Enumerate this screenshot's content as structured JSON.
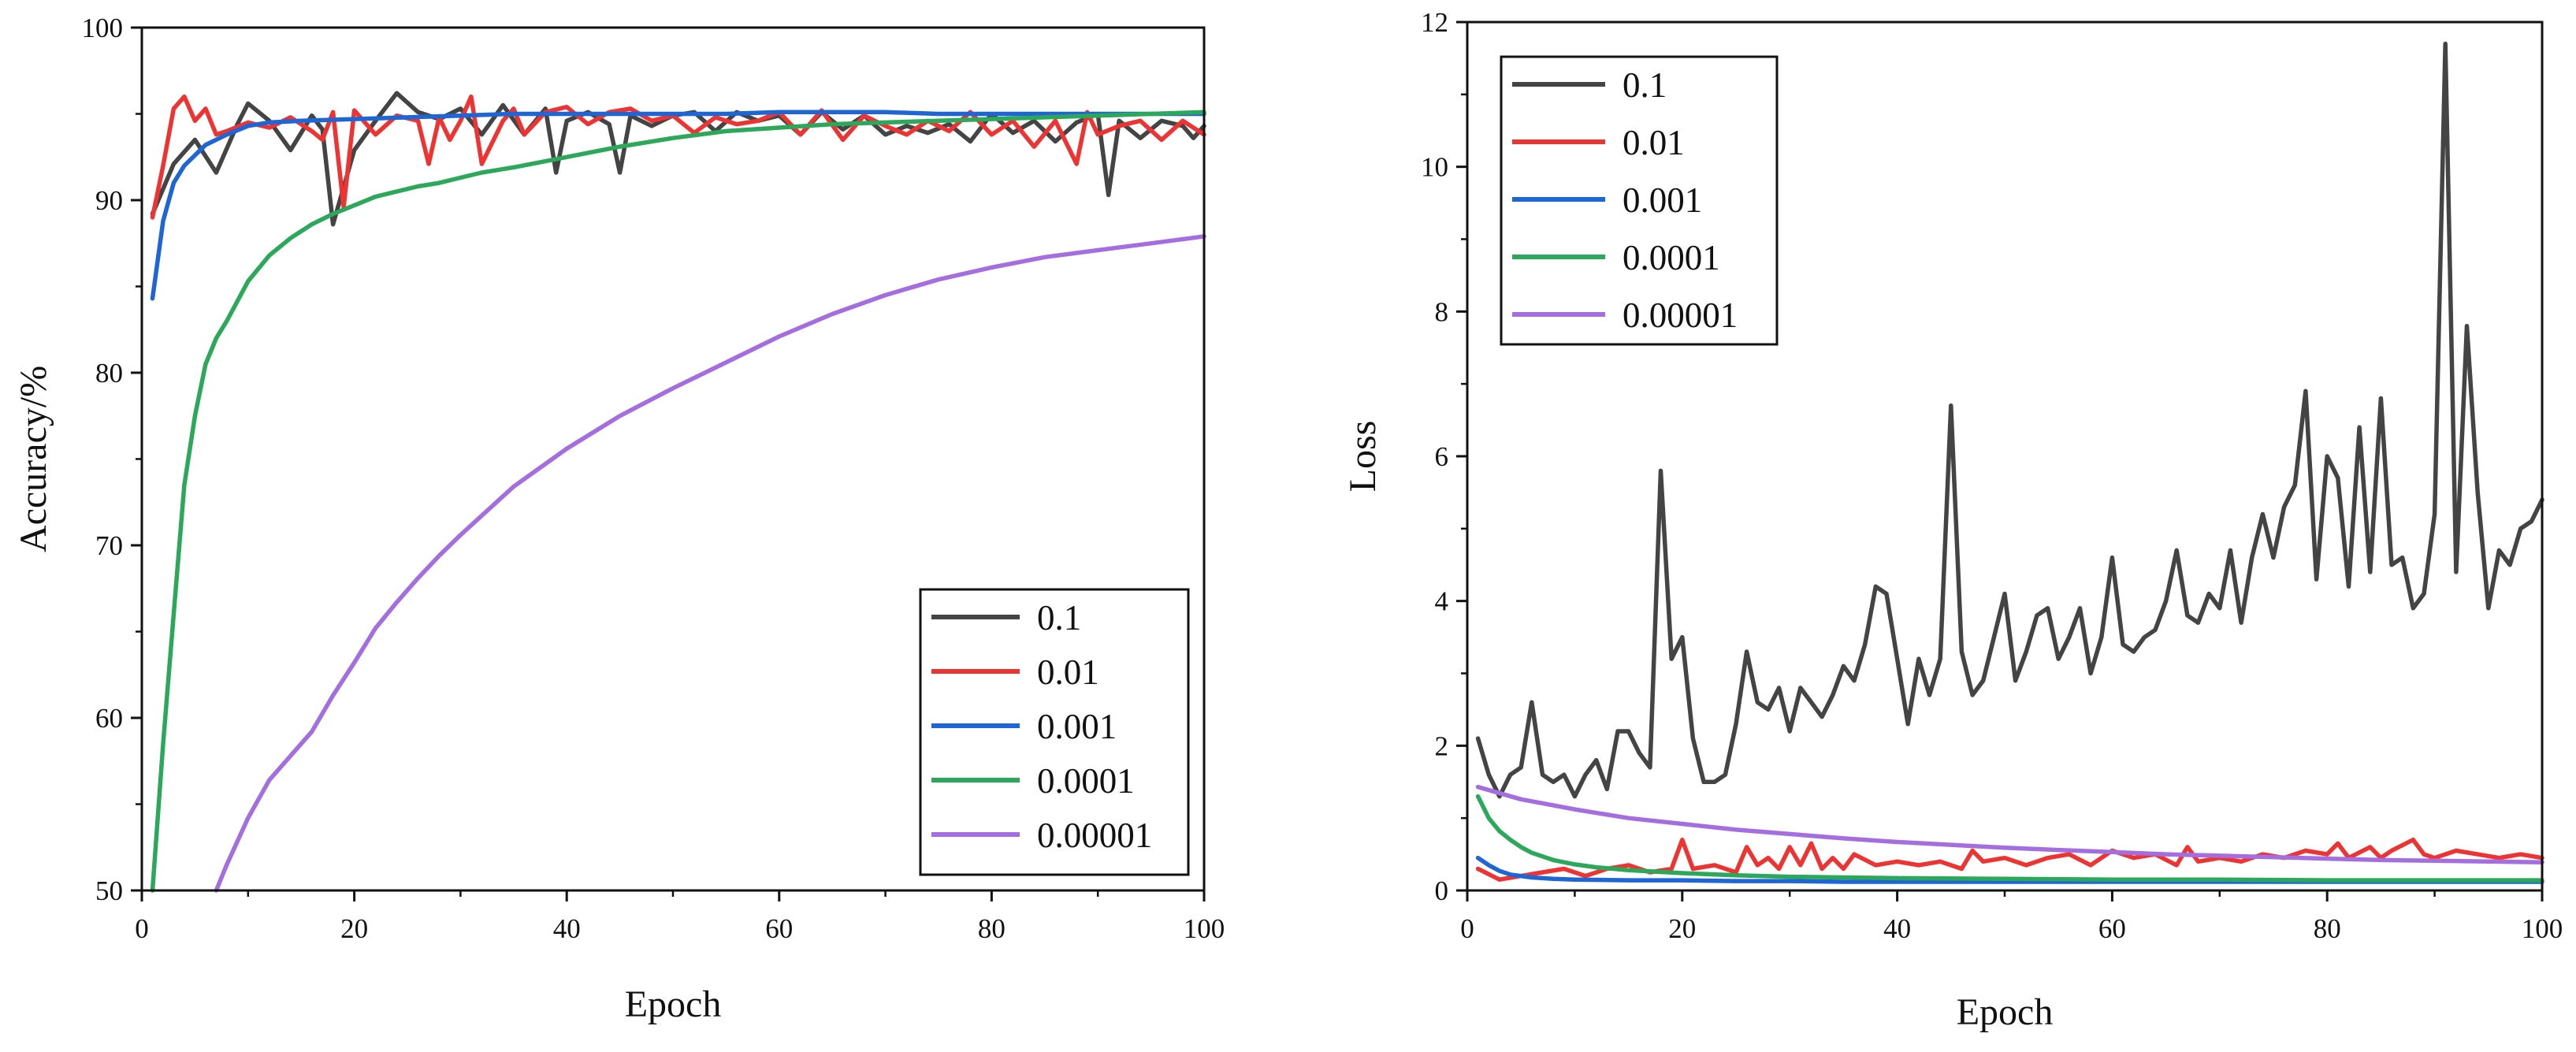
{
  "chart_data": [
    {
      "type": "line",
      "xlabel": "Epoch",
      "ylabel": "Accuracy/%",
      "xlim": [
        0,
        100
      ],
      "ylim": [
        50,
        100
      ],
      "xticks": [
        "0",
        "20",
        "40",
        "60",
        "80",
        "100"
      ],
      "yticks": [
        "50",
        "60",
        "70",
        "80",
        "90",
        "100"
      ],
      "legend_position": "bottom-right",
      "series": [
        {
          "name": "0.1",
          "color": "#444444",
          "x": [
            1,
            3,
            5,
            7,
            9,
            10,
            12,
            14,
            16,
            17,
            18,
            20,
            22,
            24,
            26,
            28,
            30,
            32,
            34,
            36,
            38,
            39,
            40,
            42,
            44,
            45,
            46,
            48,
            50,
            52,
            54,
            56,
            58,
            60,
            62,
            64,
            66,
            68,
            70,
            72,
            74,
            76,
            78,
            80,
            82,
            84,
            86,
            88,
            90,
            91,
            92,
            94,
            96,
            98,
            99,
            100
          ],
          "y": [
            89.2,
            92.1,
            93.5,
            91.6,
            94.4,
            95.6,
            94.6,
            92.9,
            94.9,
            94.1,
            88.6,
            92.9,
            94.6,
            96.2,
            95.1,
            94.7,
            95.3,
            93.8,
            95.5,
            93.8,
            95.3,
            91.6,
            94.6,
            95.1,
            94.4,
            91.6,
            94.9,
            94.3,
            94.9,
            95.1,
            94.0,
            95.1,
            94.6,
            94.9,
            93.8,
            95.1,
            94.1,
            94.9,
            93.8,
            94.3,
            93.9,
            94.4,
            93.4,
            95.0,
            93.9,
            94.6,
            93.4,
            94.5,
            95.0,
            90.3,
            94.6,
            93.6,
            94.6,
            94.3,
            93.6,
            94.3
          ]
        },
        {
          "name": "0.01",
          "color": "#ee3333",
          "x": [
            1,
            2,
            3,
            4,
            5,
            6,
            7,
            8,
            10,
            12,
            14,
            16,
            17,
            18,
            19,
            20,
            22,
            24,
            26,
            27,
            28,
            29,
            30,
            31,
            32,
            34,
            35,
            36,
            38,
            40,
            42,
            44,
            46,
            48,
            50,
            52,
            54,
            56,
            58,
            60,
            62,
            64,
            66,
            68,
            70,
            72,
            74,
            76,
            78,
            80,
            82,
            84,
            86,
            88,
            89,
            90,
            92,
            94,
            96,
            98,
            100
          ],
          "y": [
            89.0,
            92.0,
            95.3,
            96.0,
            94.6,
            95.3,
            93.8,
            94.0,
            94.5,
            94.2,
            94.8,
            94.0,
            93.5,
            95.1,
            89.6,
            95.2,
            93.8,
            94.9,
            94.6,
            92.1,
            94.8,
            93.5,
            94.6,
            96.0,
            92.1,
            94.6,
            95.3,
            93.8,
            95.1,
            95.4,
            94.4,
            95.1,
            95.3,
            94.6,
            94.9,
            93.9,
            94.8,
            94.4,
            94.6,
            95.1,
            93.8,
            95.2,
            93.5,
            94.9,
            94.3,
            93.8,
            94.6,
            94.0,
            95.1,
            93.8,
            94.6,
            93.1,
            94.6,
            92.1,
            95.1,
            93.8,
            94.3,
            94.6,
            93.5,
            94.6,
            93.8
          ]
        },
        {
          "name": "0.001",
          "color": "#1e66d6",
          "x": [
            1,
            2,
            3,
            4,
            6,
            8,
            10,
            12,
            15,
            20,
            25,
            30,
            35,
            40,
            45,
            50,
            55,
            60,
            65,
            70,
            75,
            80,
            85,
            90,
            95,
            98,
            100
          ],
          "y": [
            84.3,
            88.8,
            91.0,
            92.0,
            93.2,
            93.8,
            94.3,
            94.5,
            94.6,
            94.7,
            94.8,
            94.9,
            95.0,
            95.0,
            95.0,
            95.0,
            95.0,
            95.1,
            95.1,
            95.1,
            95.0,
            95.0,
            95.0,
            95.0,
            95.0,
            95.0,
            95.0
          ]
        },
        {
          "name": "0.0001",
          "color": "#2ca85a",
          "x": [
            1,
            2,
            3,
            4,
            5,
            6,
            7,
            8,
            10,
            12,
            14,
            16,
            18,
            20,
            22,
            24,
            26,
            28,
            30,
            32,
            35,
            40,
            45,
            50,
            55,
            60,
            65,
            70,
            75,
            80,
            85,
            90,
            95,
            100
          ],
          "y": [
            50,
            58.5,
            66,
            73.5,
            77.5,
            80.5,
            82,
            83,
            85.3,
            86.8,
            87.8,
            88.6,
            89.2,
            89.7,
            90.2,
            90.5,
            90.8,
            91.0,
            91.3,
            91.6,
            91.9,
            92.5,
            93.1,
            93.6,
            94.0,
            94.2,
            94.4,
            94.5,
            94.6,
            94.7,
            94.8,
            94.9,
            95.0,
            95.1
          ]
        },
        {
          "name": "0.00001",
          "color": "#a46ee0",
          "x": [
            7,
            8,
            10,
            12,
            14,
            16,
            18,
            20,
            22,
            24,
            26,
            28,
            30,
            35,
            40,
            45,
            50,
            55,
            60,
            65,
            70,
            75,
            80,
            85,
            90,
            95,
            100
          ],
          "y": [
            50,
            51.5,
            54.2,
            56.4,
            57.8,
            59.2,
            61.3,
            63.2,
            65.2,
            66.7,
            68.1,
            69.4,
            70.6,
            73.4,
            75.6,
            77.5,
            79.1,
            80.6,
            82.1,
            83.4,
            84.5,
            85.4,
            86.1,
            86.7,
            87.1,
            87.5,
            87.9
          ]
        }
      ]
    },
    {
      "type": "line",
      "xlabel": "Epoch",
      "ylabel": "Loss",
      "xlim": [
        0,
        100
      ],
      "ylim": [
        0,
        12
      ],
      "xticks": [
        "0",
        "20",
        "40",
        "60",
        "80",
        "100"
      ],
      "yticks": [
        "0",
        "2",
        "4",
        "6",
        "8",
        "10",
        "12"
      ],
      "legend_position": "top-left",
      "series": [
        {
          "name": "0.1",
          "color": "#444444",
          "x": [
            1,
            2,
            3,
            4,
            5,
            6,
            7,
            8,
            9,
            10,
            11,
            12,
            13,
            14,
            15,
            16,
            17,
            18,
            19,
            20,
            21,
            22,
            23,
            24,
            25,
            26,
            27,
            28,
            29,
            30,
            31,
            32,
            33,
            34,
            35,
            36,
            37,
            38,
            39,
            40,
            41,
            42,
            43,
            44,
            45,
            46,
            47,
            48,
            49,
            50,
            51,
            52,
            53,
            54,
            55,
            56,
            57,
            58,
            59,
            60,
            61,
            62,
            63,
            64,
            65,
            66,
            67,
            68,
            69,
            70,
            71,
            72,
            73,
            74,
            75,
            76,
            77,
            78,
            79,
            80,
            81,
            82,
            83,
            84,
            85,
            86,
            87,
            88,
            89,
            90,
            91,
            92,
            93,
            94,
            95,
            96,
            97,
            98,
            99,
            100
          ],
          "y": [
            2.1,
            1.6,
            1.3,
            1.6,
            1.7,
            2.6,
            1.6,
            1.5,
            1.6,
            1.3,
            1.6,
            1.8,
            1.4,
            2.2,
            2.2,
            1.9,
            1.7,
            5.8,
            3.2,
            3.5,
            2.1,
            1.5,
            1.5,
            1.6,
            2.3,
            3.3,
            2.6,
            2.5,
            2.8,
            2.2,
            2.8,
            2.6,
            2.4,
            2.7,
            3.1,
            2.9,
            3.4,
            4.2,
            4.1,
            3.2,
            2.3,
            3.2,
            2.7,
            3.2,
            6.7,
            3.3,
            2.7,
            2.9,
            3.5,
            4.1,
            2.9,
            3.3,
            3.8,
            3.9,
            3.2,
            3.5,
            3.9,
            3.0,
            3.5,
            4.6,
            3.4,
            3.3,
            3.5,
            3.6,
            4.0,
            4.7,
            3.8,
            3.7,
            4.1,
            3.9,
            4.7,
            3.7,
            4.6,
            5.2,
            4.6,
            5.3,
            5.6,
            6.9,
            4.3,
            6.0,
            5.7,
            4.2,
            6.4,
            4.4,
            6.8,
            4.5,
            4.6,
            3.9,
            4.1,
            5.2,
            11.7,
            4.4,
            7.8,
            5.5,
            3.9,
            4.7,
            4.5,
            5.0,
            5.1,
            5.4
          ]
        },
        {
          "name": "0.01",
          "color": "#ee3333",
          "x": [
            1,
            3,
            5,
            7,
            9,
            11,
            13,
            15,
            17,
            19,
            20,
            21,
            23,
            25,
            26,
            27,
            28,
            29,
            30,
            31,
            32,
            33,
            34,
            35,
            36,
            38,
            40,
            42,
            44,
            46,
            47,
            48,
            50,
            52,
            54,
            56,
            58,
            60,
            62,
            64,
            66,
            67,
            68,
            70,
            72,
            74,
            76,
            78,
            80,
            81,
            82,
            84,
            85,
            86,
            88,
            89,
            90,
            92,
            94,
            96,
            98,
            100
          ],
          "y": [
            0.3,
            0.15,
            0.2,
            0.25,
            0.3,
            0.2,
            0.3,
            0.35,
            0.25,
            0.3,
            0.7,
            0.3,
            0.35,
            0.25,
            0.6,
            0.35,
            0.45,
            0.3,
            0.6,
            0.35,
            0.65,
            0.3,
            0.45,
            0.3,
            0.5,
            0.35,
            0.4,
            0.35,
            0.4,
            0.3,
            0.55,
            0.4,
            0.45,
            0.35,
            0.45,
            0.5,
            0.35,
            0.55,
            0.45,
            0.5,
            0.35,
            0.6,
            0.4,
            0.45,
            0.4,
            0.5,
            0.45,
            0.55,
            0.5,
            0.65,
            0.45,
            0.6,
            0.45,
            0.55,
            0.7,
            0.5,
            0.45,
            0.55,
            0.5,
            0.45,
            0.5,
            0.45
          ]
        },
        {
          "name": "0.001",
          "color": "#1e66d6",
          "x": [
            1,
            2,
            3,
            4,
            6,
            8,
            10,
            15,
            20,
            25,
            30,
            35,
            40,
            45,
            50,
            55,
            60,
            65,
            70,
            75,
            80,
            85,
            90,
            95,
            100
          ],
          "y": [
            0.45,
            0.35,
            0.27,
            0.22,
            0.18,
            0.16,
            0.15,
            0.14,
            0.14,
            0.13,
            0.13,
            0.12,
            0.12,
            0.12,
            0.12,
            0.12,
            0.12,
            0.12,
            0.12,
            0.12,
            0.12,
            0.12,
            0.12,
            0.12,
            0.12
          ]
        },
        {
          "name": "0.0001",
          "color": "#2ca85a",
          "x": [
            1,
            2,
            3,
            4,
            5,
            6,
            8,
            10,
            12,
            15,
            20,
            25,
            30,
            35,
            40,
            50,
            60,
            70,
            80,
            90,
            100
          ],
          "y": [
            1.3,
            1.0,
            0.82,
            0.7,
            0.6,
            0.52,
            0.42,
            0.36,
            0.32,
            0.28,
            0.24,
            0.21,
            0.19,
            0.18,
            0.17,
            0.16,
            0.15,
            0.15,
            0.14,
            0.14,
            0.14
          ]
        },
        {
          "name": "0.00001",
          "color": "#a46ee0",
          "x": [
            1,
            5,
            10,
            15,
            20,
            25,
            30,
            35,
            40,
            45,
            50,
            55,
            60,
            65,
            70,
            75,
            80,
            85,
            90,
            95,
            100
          ],
          "y": [
            1.43,
            1.26,
            1.12,
            1.0,
            0.92,
            0.84,
            0.78,
            0.72,
            0.67,
            0.63,
            0.59,
            0.56,
            0.53,
            0.5,
            0.48,
            0.46,
            0.44,
            0.42,
            0.41,
            0.4,
            0.39
          ]
        }
      ]
    }
  ]
}
